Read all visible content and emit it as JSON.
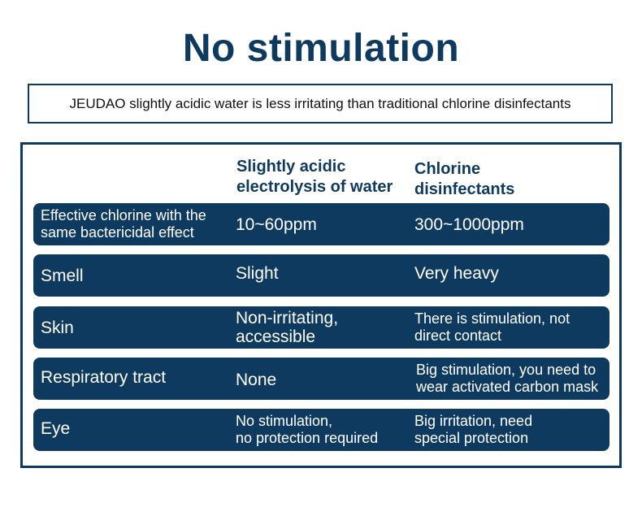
{
  "title": "No stimulation",
  "subtitle": "JEUDAO slightly acidic water is less irritating than traditional chlorine disinfectants",
  "table": {
    "headers": {
      "col2": [
        "Slightly acidic",
        "electrolysis of water"
      ],
      "col3": [
        "Chlorine",
        "disinfectants"
      ]
    },
    "rows": [
      {
        "label": [
          "Effective chlorine with the",
          "same bactericidal effect"
        ],
        "acidic": [
          "10~60ppm"
        ],
        "chlorine": [
          "300~1000ppm"
        ]
      },
      {
        "label": [
          "Smell"
        ],
        "acidic": [
          "Slight"
        ],
        "chlorine": [
          "Very heavy"
        ]
      },
      {
        "label": [
          "Skin"
        ],
        "acidic": [
          "Non-irritating,",
          "accessible"
        ],
        "chlorine": [
          "There is stimulation, not",
          "direct contact"
        ]
      },
      {
        "label": [
          "Respiratory tract"
        ],
        "acidic": [
          "None"
        ],
        "chlorine": [
          "Big stimulation, you need to",
          "wear activated carbon mask"
        ]
      },
      {
        "label": [
          "Eye"
        ],
        "acidic": [
          "No stimulation,",
          "no protection required"
        ],
        "chlorine": [
          "Big irritation, need",
          "special protection"
        ]
      }
    ]
  }
}
